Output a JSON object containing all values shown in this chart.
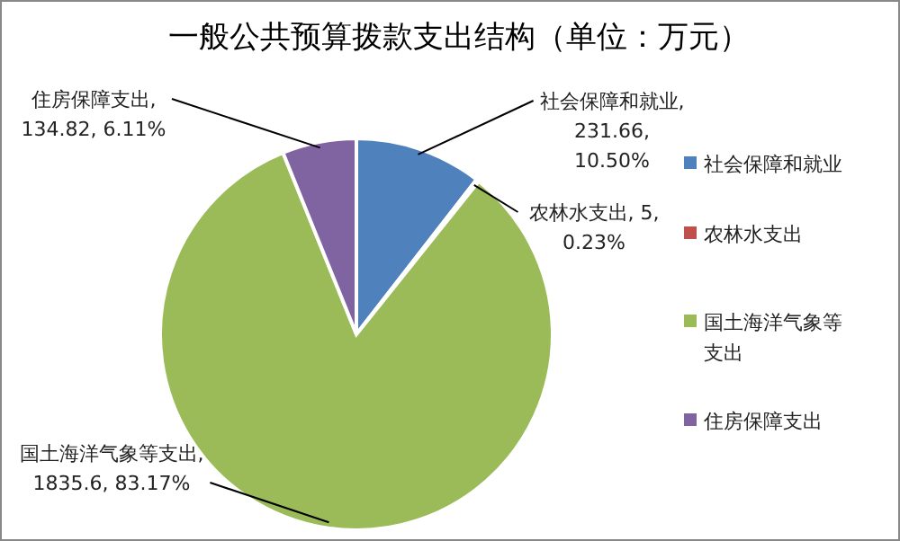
{
  "chart_data": {
    "type": "pie",
    "title": "一般公共预算拨款支出结构（单位：万元）",
    "categories": [
      "社会保障和就业",
      "农林水支出",
      "国土海洋气象等支出",
      "住房保障支出"
    ],
    "values": [
      231.66,
      5,
      1835.6,
      134.82
    ],
    "colors": [
      "#4f81bd",
      "#c0504d",
      "#9bbb59",
      "#8064a2"
    ],
    "value_labels": [
      "社会保障和就业, 231.66, 10.50%",
      "农林水支出, 5, 0.23%",
      "国土海洋气象等支出, 1835.6, 83.17%",
      "住房保障支出, 134.82, 6.11%"
    ],
    "legend": "right"
  }
}
